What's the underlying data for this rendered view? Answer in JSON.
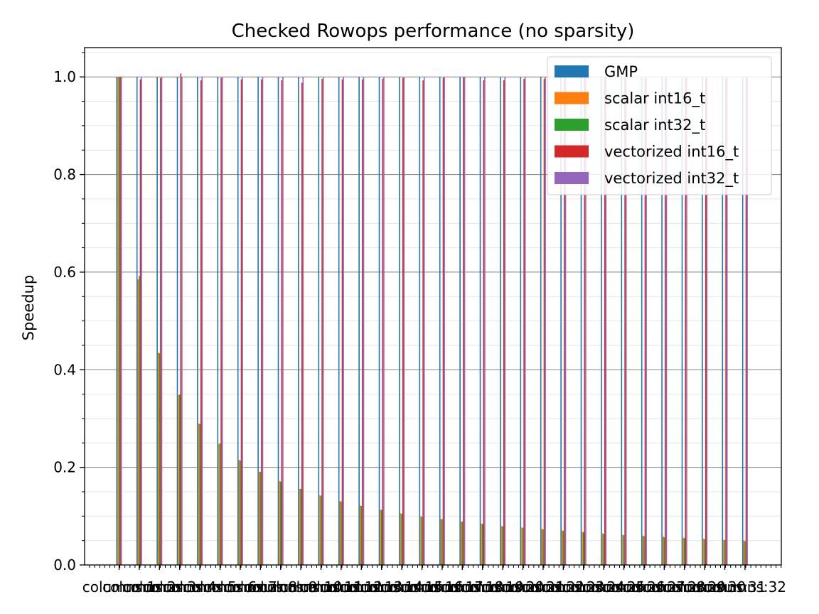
{
  "chart_data": {
    "type": "bar",
    "title": "Checked Rowops performance (no sparsity)",
    "xlabel": "",
    "ylabel": "Speedup",
    "ylim": [
      0,
      1.06
    ],
    "yticks": [
      "0.0",
      "0.2",
      "0.4",
      "0.6",
      "0.8",
      "1.0"
    ],
    "grid": {
      "major": true,
      "minor": true
    },
    "legend_position": "top-right",
    "categories": [
      "columns:1",
      "columns:2",
      "columns:3",
      "columns:4",
      "columns:5",
      "columns:6",
      "columns:7",
      "columns:8",
      "columns:9",
      "columns:10",
      "columns:11",
      "columns:12",
      "columns:13",
      "columns:14",
      "columns:15",
      "columns:16",
      "columns:17",
      "columns:18",
      "columns:19",
      "columns:20",
      "columns:21",
      "columns:22",
      "columns:23",
      "columns:24",
      "columns:25",
      "columns:26",
      "columns:27",
      "columns:28",
      "columns:29",
      "columns:30",
      "columns:31",
      "columns:32"
    ],
    "series": [
      {
        "name": "GMP",
        "color": "#1f77b4",
        "values": [
          1,
          1,
          1,
          1,
          1,
          1,
          1,
          1,
          1,
          1,
          1,
          1,
          1,
          1,
          1,
          1,
          1,
          1,
          1,
          1,
          1,
          1,
          1,
          1,
          1,
          1,
          1,
          1,
          1,
          1,
          1,
          1
        ]
      },
      {
        "name": "scalar int16_t",
        "color": "#ff7f0e",
        "values": [
          1.0,
          0.585,
          0.435,
          0.348,
          0.29,
          0.248,
          0.215,
          0.191,
          0.172,
          0.156,
          0.143,
          0.131,
          0.122,
          0.113,
          0.106,
          0.1,
          0.094,
          0.089,
          0.085,
          0.08,
          0.077,
          0.074,
          0.071,
          0.068,
          0.065,
          0.062,
          0.06,
          0.058,
          0.056,
          0.054,
          0.052,
          0.05
        ]
      },
      {
        "name": "scalar int32_t",
        "color": "#2ca02c",
        "values": [
          1.0,
          0.592,
          0.434,
          0.349,
          0.289,
          0.249,
          0.214,
          0.191,
          0.171,
          0.156,
          0.142,
          0.13,
          0.121,
          0.113,
          0.105,
          0.099,
          0.094,
          0.089,
          0.084,
          0.079,
          0.076,
          0.073,
          0.07,
          0.067,
          0.064,
          0.061,
          0.059,
          0.057,
          0.055,
          0.053,
          0.051,
          0.049
        ]
      },
      {
        "name": "vectorized int16_t",
        "color": "#d62728",
        "values": [
          1.0,
          0.995,
          0.998,
          1.007,
          0.993,
          0.998,
          0.995,
          0.995,
          0.993,
          0.988,
          0.996,
          0.995,
          0.995,
          0.996,
          0.998,
          0.993,
          0.998,
          0.999,
          0.993,
          0.993,
          0.996,
          0.996,
          0.998,
          0.999,
          0.998,
          0.998,
          0.998,
          0.998,
          0.998,
          0.998,
          0.998,
          0.999
        ]
      },
      {
        "name": "vectorized int32_t",
        "color": "#9467bd",
        "values": [
          1.0,
          1.0,
          1.0,
          1.0,
          1.0,
          1.0,
          1.0,
          1.0,
          1.0,
          1.0,
          1.0,
          1.0,
          1.0,
          1.0,
          1.0,
          1.0,
          1.0,
          1.0,
          1.0,
          1.0,
          1.0,
          1.0,
          1.0,
          1.0,
          1.0,
          1.0,
          1.0,
          1.0,
          1.0,
          1.0,
          1.0,
          1.0
        ]
      }
    ]
  }
}
